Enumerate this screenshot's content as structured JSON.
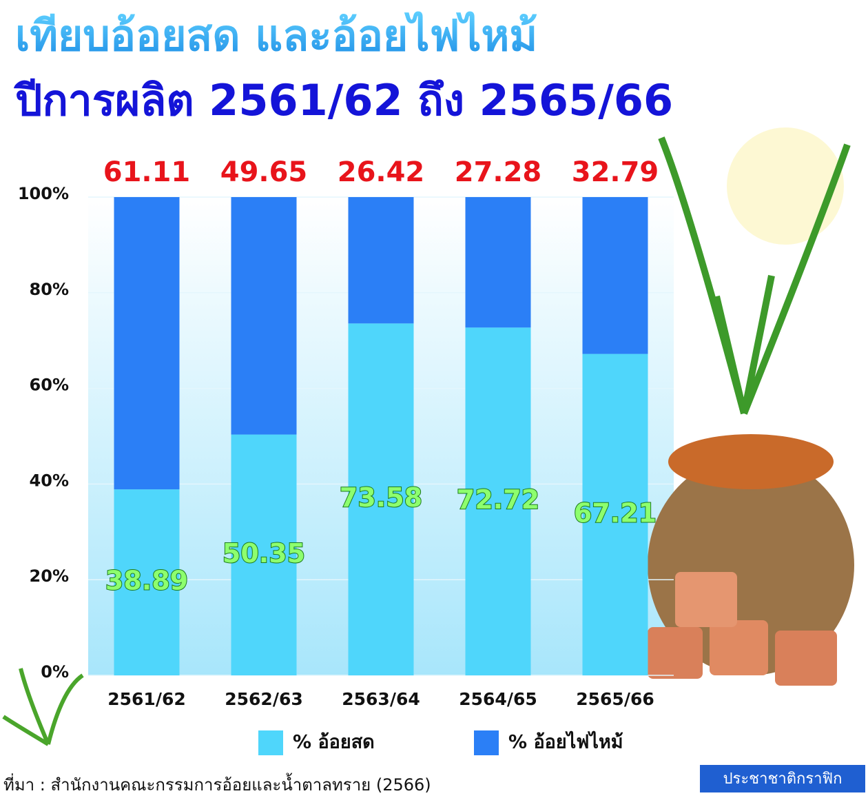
{
  "chart_data": {
    "type": "stacked_bar",
    "title": "เทียบอ้อยสด และอ้อยไฟไหม้",
    "subtitle": "ปีการผลิต 2561/62 ถึง 2565/66",
    "categories": [
      "2561/62",
      "2562/63",
      "2563/64",
      "2564/65",
      "2565/66"
    ],
    "series": [
      {
        "name": "% อ้อยสด",
        "color": "#4fd6fb",
        "values": [
          38.89,
          50.35,
          73.58,
          72.72,
          67.21
        ]
      },
      {
        "name": "% อ้อยไฟไหม้",
        "color": "#2b7ff6",
        "values": [
          61.11,
          49.65,
          26.42,
          27.28,
          32.79
        ]
      }
    ],
    "ylim": [
      0,
      100
    ],
    "yticks": [
      {
        "value": 0,
        "label": "0%"
      },
      {
        "value": 20,
        "label": "20%"
      },
      {
        "value": 40,
        "label": "40%"
      },
      {
        "value": 60,
        "label": "60%"
      },
      {
        "value": 80,
        "label": "80%"
      },
      {
        "value": 100,
        "label": "100%"
      }
    ],
    "grid": true,
    "legend": "bottom",
    "source": "ที่มา : สำนักงานคณะกรรมการอ้อยและน้ำตาลทราย (2566)",
    "brand": "ประชาชาติกราฟิก"
  }
}
